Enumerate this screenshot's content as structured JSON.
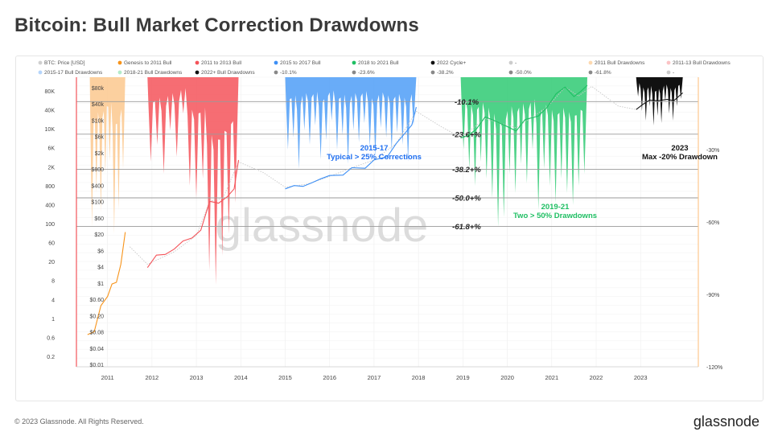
{
  "page": {
    "title": "Bitcoin: Bull Market Correction Drawdowns",
    "copyright": "© 2023 Glassnode. All Rights Reserved.",
    "logo": "glassnode",
    "watermark": "glassnode"
  },
  "chart_data": {
    "type": "line",
    "title": "Bitcoin: Bull Market Correction Drawdowns",
    "legend": {
      "placement": "top",
      "items": [
        {
          "label": "BTC: Price [USD]",
          "color": "#d0d0d0"
        },
        {
          "label": "Genesis to 2011 Bull",
          "color": "#f7931a"
        },
        {
          "label": "2011 to 2013 Bull",
          "color": "#f4545a"
        },
        {
          "label": "2015 to 2017 Bull",
          "color": "#3d8ff5"
        },
        {
          "label": "2018 to 2021 Bull",
          "color": "#1fbf63"
        },
        {
          "label": "2022 Cycle+",
          "color": "#111111"
        },
        {
          "label": "-",
          "color": "#cccccc"
        },
        {
          "label": "2011 Bull Drawdowns",
          "color": "#fdd9b0"
        },
        {
          "label": "2011-13 Bull Drawdowns",
          "color": "#fbc3c5"
        },
        {
          "label": "2015-17 Bull Drawdowns",
          "color": "#b5d5fb"
        },
        {
          "label": "2018-21 Bull Drawdowns",
          "color": "#b3ebc9"
        },
        {
          "label": "2022+ Bull Drawdowns",
          "color": "#111111"
        },
        {
          "label": "-10.1%",
          "color": "#888888"
        },
        {
          "label": "-23.6%",
          "color": "#888888"
        },
        {
          "label": "-38.2%",
          "color": "#888888"
        },
        {
          "label": "-50.0%",
          "color": "#888888"
        },
        {
          "label": "-61.8%",
          "color": "#888888"
        },
        {
          "label": "-",
          "color": "#cccccc"
        }
      ]
    },
    "x_ticks": [
      "2011",
      "2012",
      "2013",
      "2014",
      "2015",
      "2016",
      "2017",
      "2018",
      "2019",
      "2020",
      "2021",
      "2022",
      "2023"
    ],
    "y_left_outer_ticks": [
      "80K",
      "40K",
      "10K",
      "6K",
      "2K",
      "800",
      "400",
      "100",
      "60",
      "20",
      "8",
      "4",
      "1",
      "0.6",
      "0.2"
    ],
    "y_left_inner_ticks": [
      "$80k",
      "$40k",
      "$10k",
      "$6k",
      "$2k",
      "$800",
      "$400",
      "$100",
      "$60",
      "$20",
      "$6",
      "$4",
      "$1",
      "$0.60",
      "$0.20",
      "$0.08",
      "$0.04",
      "$0.01"
    ],
    "y_right_ticks": [
      "-30%",
      "-60%",
      "-90%",
      "-120%"
    ],
    "y_right_range": [
      0,
      -120
    ],
    "y_left_scale": "log",
    "fib_levels": [
      {
        "label": "-10.1%",
        "value": -10.1
      },
      {
        "label": "-23.6+%",
        "value": -23.6
      },
      {
        "label": "-38.2+%",
        "value": -38.2
      },
      {
        "label": "-50.0+%",
        "value": -50.0
      },
      {
        "label": "-61.8+%",
        "value": -61.8
      }
    ],
    "annotations": [
      {
        "title": "2015-17",
        "text": "Typical > 25% Corrections",
        "color": "#1f6ff0"
      },
      {
        "title": "2019-21",
        "text": "Two > 50% Drawdowns",
        "color": "#1fbf63"
      },
      {
        "title": "2023",
        "text": "Max -20% Drawdown",
        "color": "#111111"
      }
    ],
    "drawdown_series": [
      {
        "name": "2011 Bull Drawdowns",
        "color": "#fcc88e",
        "x_start": 2010.6,
        "x_end": 2011.4,
        "max_dd": [
          -62,
          -48,
          -56,
          -40,
          -35,
          -65,
          -55,
          -38
        ]
      },
      {
        "name": "2011-13 Bull Drawdowns",
        "color": "#f4545a",
        "x_start": 2011.9,
        "x_end": 2013.95,
        "max_dd": [
          -35,
          -28,
          -40,
          -22,
          -33,
          -15,
          -45,
          -50,
          -42,
          -80,
          -86,
          -74,
          -65,
          -52
        ]
      },
      {
        "name": "2015-17 Bull Drawdowns",
        "color": "#4f9ef7",
        "x_start": 2015.0,
        "x_end": 2017.95,
        "max_dd": [
          -30,
          -25,
          -38,
          -22,
          -28,
          -20,
          -34,
          -26,
          -18,
          -30,
          -24,
          -36,
          -22,
          -27,
          -19,
          -29,
          -33,
          -21,
          -25,
          -31,
          -23,
          -28,
          -35,
          -20
        ]
      },
      {
        "name": "2018-21 Bull Drawdowns",
        "color": "#2fca73",
        "x_start": 2018.95,
        "x_end": 2021.8,
        "max_dd": [
          -30,
          -38,
          -45,
          -35,
          -42,
          -50,
          -62,
          -58,
          -40,
          -48,
          -36,
          -44,
          -30,
          -55,
          -38,
          -45,
          -52,
          -42,
          -48,
          -53,
          -45,
          -40
        ]
      },
      {
        "name": "2022+ Bull Drawdowns",
        "color": "#111111",
        "x_start": 2022.9,
        "x_end": 2023.95,
        "max_dd": [
          -8,
          -14,
          -18,
          -12,
          -20,
          -16,
          -19,
          -10,
          -15,
          -18,
          -12,
          -9
        ]
      }
    ],
    "price_series": [
      {
        "name": "BTC: Price [USD]",
        "color": "#c8c8c8",
        "points": [
          [
            2011.5,
            8
          ],
          [
            2011.9,
            3
          ],
          [
            2012.5,
            6
          ],
          [
            2013.0,
            15
          ],
          [
            2013.3,
            100
          ],
          [
            2013.6,
            120
          ],
          [
            2013.95,
            900
          ],
          [
            2014.5,
            500
          ],
          [
            2015.0,
            220
          ],
          [
            2015.5,
            260
          ],
          [
            2016.0,
            400
          ],
          [
            2016.5,
            650
          ],
          [
            2017.0,
            1000
          ],
          [
            2017.5,
            2500
          ],
          [
            2017.95,
            15000
          ],
          [
            2018.5,
            6500
          ],
          [
            2018.95,
            3500
          ],
          [
            2019.5,
            10000
          ],
          [
            2020.2,
            6000
          ],
          [
            2020.9,
            19000
          ],
          [
            2021.3,
            58000
          ],
          [
            2021.6,
            35000
          ],
          [
            2021.9,
            60000
          ],
          [
            2022.5,
            20000
          ],
          [
            2022.9,
            16500
          ]
        ]
      },
      {
        "name": "Genesis to 2011 Bull",
        "color": "#f7931a",
        "points": [
          [
            2010.55,
            0.06
          ],
          [
            2010.7,
            0.07
          ],
          [
            2010.85,
            0.3
          ],
          [
            2011.0,
            0.5
          ],
          [
            2011.1,
            1.0
          ],
          [
            2011.2,
            1.1
          ],
          [
            2011.3,
            3
          ],
          [
            2011.4,
            18
          ]
        ]
      },
      {
        "name": "2011 to 2013 Bull",
        "color": "#f4545a",
        "points": [
          [
            2011.9,
            2.5
          ],
          [
            2012.1,
            5
          ],
          [
            2012.3,
            5.2
          ],
          [
            2012.5,
            7
          ],
          [
            2012.7,
            11
          ],
          [
            2012.9,
            13
          ],
          [
            2013.1,
            20
          ],
          [
            2013.3,
            100
          ],
          [
            2013.5,
            90
          ],
          [
            2013.7,
            130
          ],
          [
            2013.85,
            200
          ],
          [
            2013.95,
            1000
          ]
        ]
      },
      {
        "name": "2015 to 2017 Bull",
        "color": "#3d8ff5",
        "points": [
          [
            2015.0,
            200
          ],
          [
            2015.2,
            240
          ],
          [
            2015.4,
            230
          ],
          [
            2015.6,
            280
          ],
          [
            2015.8,
            350
          ],
          [
            2016.0,
            420
          ],
          [
            2016.3,
            430
          ],
          [
            2016.5,
            650
          ],
          [
            2016.8,
            630
          ],
          [
            2017.0,
            1000
          ],
          [
            2017.3,
            1200
          ],
          [
            2017.5,
            2500
          ],
          [
            2017.7,
            4500
          ],
          [
            2017.85,
            7000
          ],
          [
            2017.95,
            19000
          ]
        ]
      },
      {
        "name": "2018 to 2021 Bull",
        "color": "#1fbf63",
        "points": [
          [
            2018.95,
            3400
          ],
          [
            2019.1,
            3800
          ],
          [
            2019.3,
            5500
          ],
          [
            2019.5,
            11000
          ],
          [
            2019.7,
            9000
          ],
          [
            2019.9,
            7200
          ],
          [
            2020.2,
            5000
          ],
          [
            2020.4,
            9500
          ],
          [
            2020.7,
            11500
          ],
          [
            2020.9,
            19000
          ],
          [
            2021.1,
            40000
          ],
          [
            2021.3,
            58000
          ],
          [
            2021.5,
            34000
          ],
          [
            2021.65,
            45000
          ],
          [
            2021.8,
            64000
          ]
        ]
      },
      {
        "name": "2022 Cycle+",
        "color": "#111111",
        "points": [
          [
            2022.9,
            16500
          ],
          [
            2023.05,
            22000
          ],
          [
            2023.2,
            28000
          ],
          [
            2023.4,
            27000
          ],
          [
            2023.6,
            29000
          ],
          [
            2023.75,
            27000
          ],
          [
            2023.95,
            42000
          ]
        ]
      }
    ]
  }
}
